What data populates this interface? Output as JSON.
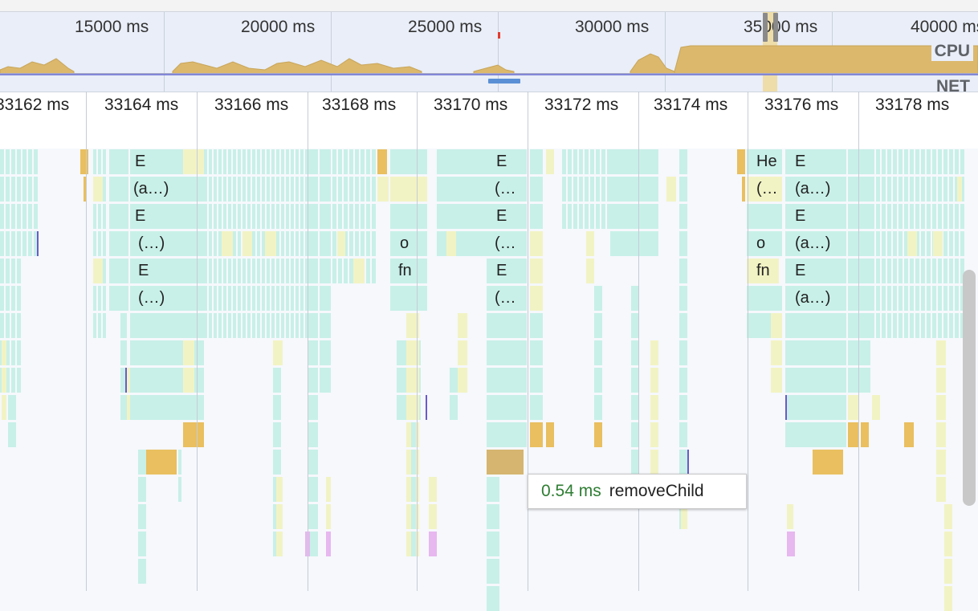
{
  "overview": {
    "ticks": [
      "15000 ms",
      "20000 ms",
      "25000 ms",
      "30000 ms",
      "35000 ms",
      "40000 ms"
    ],
    "labels": {
      "cpu": "CPU",
      "net": "NET"
    }
  },
  "ruler": {
    "ticks": [
      "33162 ms",
      "33164 ms",
      "33166 ms",
      "33168 ms",
      "33170 ms",
      "33172 ms",
      "33174 ms",
      "33176 ms",
      "33178 ms"
    ]
  },
  "flame": {
    "labels": [
      "E",
      "(a…)",
      "E",
      "(…)",
      "E",
      "(…)",
      "o",
      "fn",
      "E",
      "(…",
      "E",
      "(…",
      "E",
      "(…",
      "He",
      "(…",
      "o",
      "fn",
      "E",
      "(a…)",
      "E",
      "(a…)",
      "E",
      "(a…)"
    ],
    "colors": {
      "script": "#c8f0e8",
      "system": "#f2f3c4",
      "render": "#e9bf5f",
      "paint": "#e7b7ef",
      "gc": "#d5b56f"
    }
  },
  "tooltip": {
    "duration": "0.54 ms",
    "name": "removeChild"
  }
}
